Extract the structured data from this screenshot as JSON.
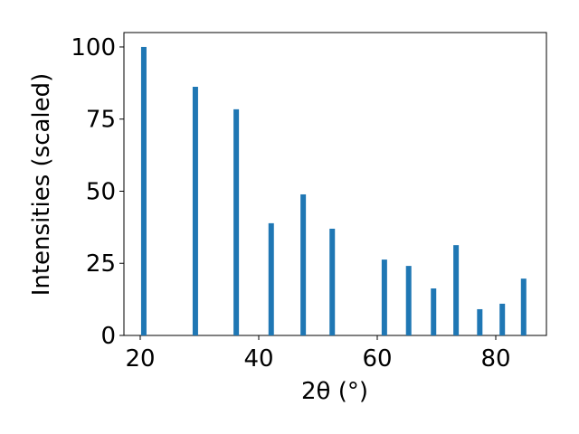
{
  "chart_data": {
    "type": "bar",
    "x_label": "2θ (°)",
    "y_label": "Intensities (scaled)",
    "x": [
      20.6,
      29.3,
      36.2,
      42.1,
      47.5,
      52.4,
      61.2,
      65.3,
      69.5,
      73.3,
      77.3,
      81.1,
      84.7
    ],
    "values": [
      100,
      86.2,
      78.4,
      38.9,
      48.9,
      37.0,
      26.3,
      24.1,
      16.3,
      31.3,
      9.1,
      11.0,
      19.7
    ],
    "color": "#1f77b4",
    "xlim": [
      17.25,
      88.55
    ],
    "xticks": [
      20,
      40,
      60,
      80
    ],
    "ylim": [
      0,
      105
    ],
    "yticks": [
      0,
      25,
      50,
      75,
      100
    ],
    "grid": false
  }
}
